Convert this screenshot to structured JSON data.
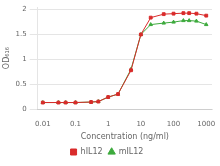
{
  "chart_data": {
    "type": "line",
    "xlabel": "Concentration (ng/ml)",
    "ylabel": "OD₆₁₆",
    "x": [
      0.01,
      0.03,
      0.05,
      0.1,
      0.3,
      0.5,
      1.0,
      2.0,
      5.0,
      10.0,
      20.0,
      50.0,
      100.0,
      200.0,
      300.0,
      500.0,
      1000.0
    ],
    "series": [
      {
        "name": "hIL12",
        "color": "#d92b2b",
        "marker": "square",
        "values": [
          0.13,
          0.13,
          0.13,
          0.13,
          0.14,
          0.15,
          0.24,
          0.3,
          0.78,
          1.5,
          1.84,
          1.91,
          1.92,
          1.93,
          1.93,
          1.92,
          1.88
        ]
      },
      {
        "name": "mIL12",
        "color": "#3daa3d",
        "marker": "triangle",
        "values": [
          0.13,
          0.13,
          0.13,
          0.13,
          0.14,
          0.15,
          0.24,
          0.3,
          0.8,
          1.5,
          1.7,
          1.73,
          1.75,
          1.78,
          1.78,
          1.77,
          1.7
        ]
      }
    ],
    "log": "x",
    "xlim": [
      0.007,
      1500
    ],
    "xticks": [
      0.01,
      0.1,
      1,
      10,
      100,
      1000
    ],
    "ylim": [
      0,
      2.05
    ],
    "yticks": [
      0,
      0.5,
      1,
      1.5,
      2
    ],
    "grid": "y",
    "legend": "bottom"
  }
}
